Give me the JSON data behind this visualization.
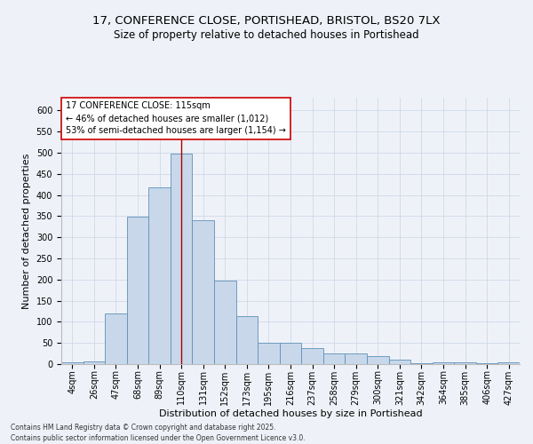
{
  "title_line1": "17, CONFERENCE CLOSE, PORTISHEAD, BRISTOL, BS20 7LX",
  "title_line2": "Size of property relative to detached houses in Portishead",
  "xlabel": "Distribution of detached houses by size in Portishead",
  "ylabel": "Number of detached properties",
  "footnote": "Contains HM Land Registry data © Crown copyright and database right 2025.\nContains public sector information licensed under the Open Government Licence v3.0.",
  "categories": [
    "4sqm",
    "26sqm",
    "47sqm",
    "68sqm",
    "89sqm",
    "110sqm",
    "131sqm",
    "152sqm",
    "173sqm",
    "195sqm",
    "216sqm",
    "237sqm",
    "258sqm",
    "279sqm",
    "300sqm",
    "321sqm",
    "342sqm",
    "364sqm",
    "385sqm",
    "406sqm",
    "427sqm"
  ],
  "values": [
    5,
    7,
    120,
    348,
    417,
    498,
    340,
    197,
    113,
    50,
    50,
    37,
    25,
    25,
    18,
    10,
    3,
    5,
    4,
    3,
    5
  ],
  "bar_color": "#c8d8ea",
  "bar_edge_color": "#6090b8",
  "bar_edge_width": 0.6,
  "vline_x_index": 5,
  "vline_color": "#aa0000",
  "annotation_title": "17 CONFERENCE CLOSE: 115sqm",
  "annotation_line2": "← 46% of detached houses are smaller (1,012)",
  "annotation_line3": "53% of semi-detached houses are larger (1,154) →",
  "annotation_box_color": "#cc0000",
  "annotation_bg": "#ffffff",
  "ylim": [
    0,
    630
  ],
  "yticks": [
    0,
    50,
    100,
    150,
    200,
    250,
    300,
    350,
    400,
    450,
    500,
    550,
    600
  ],
  "grid_color": "#d0d8e8",
  "background_color": "#eef2f8",
  "title_fontsize": 9.5,
  "subtitle_fontsize": 8.5,
  "axis_label_fontsize": 8,
  "tick_fontsize": 7,
  "annotation_fontsize": 7,
  "footnote_fontsize": 5.5
}
